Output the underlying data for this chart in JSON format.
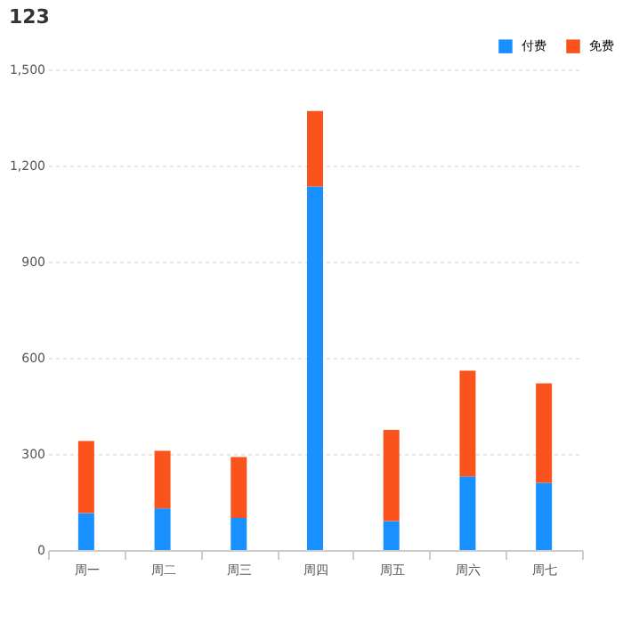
{
  "chart_data": {
    "type": "bar",
    "title": "123",
    "stacked": true,
    "categories": [
      "周一",
      "周二",
      "周三",
      "周四",
      "周五",
      "周六",
      "周七"
    ],
    "series": [
      {
        "name": "付费",
        "color": "#1890ff",
        "values": [
          115,
          130,
          100,
          1135,
          90,
          230,
          210
        ]
      },
      {
        "name": "免费",
        "color": "#fa541c",
        "values": [
          225,
          180,
          190,
          235,
          285,
          330,
          310
        ]
      }
    ],
    "ylim": [
      0,
      1500
    ],
    "yticks": [
      0,
      {
        "value": 300,
        "label": "300"
      },
      {
        "value": 600,
        "label": "600"
      },
      {
        "value": 900,
        "label": "900"
      },
      {
        "value": 1200,
        "label": "1,200"
      },
      {
        "value": 1500,
        "label": "1,500"
      }
    ],
    "grid": "y",
    "legend": "top right"
  }
}
